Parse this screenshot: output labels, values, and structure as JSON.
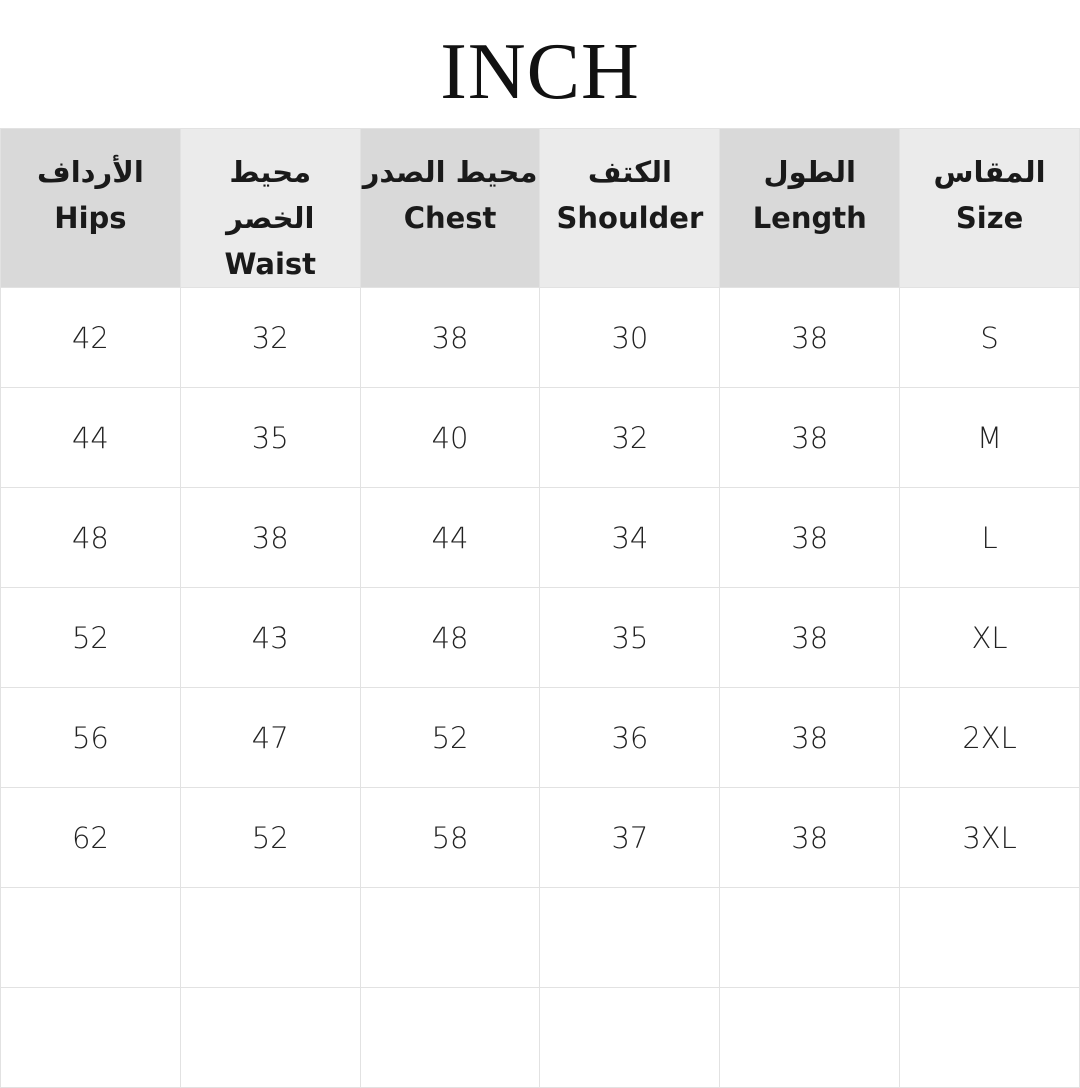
{
  "title": "INCH",
  "columns": [
    {
      "ar": "الأرداف",
      "en": "Hips"
    },
    {
      "ar": "محيط الخصر",
      "en": "Waist"
    },
    {
      "ar": "محيط الصدر",
      "en": "Chest"
    },
    {
      "ar": "الكتف",
      "en": "Shoulder"
    },
    {
      "ar": "الطول",
      "en": "Length"
    },
    {
      "ar": "المقاس",
      "en": "Size"
    }
  ],
  "rows": [
    [
      "42",
      "32",
      "38",
      "30",
      "38",
      "S"
    ],
    [
      "44",
      "35",
      "40",
      "32",
      "38",
      "M"
    ],
    [
      "48",
      "38",
      "44",
      "34",
      "38",
      "L"
    ],
    [
      "52",
      "43",
      "48",
      "35",
      "38",
      "XL"
    ],
    [
      "56",
      "47",
      "52",
      "36",
      "38",
      "2XL"
    ],
    [
      "62",
      "52",
      "58",
      "37",
      "38",
      "3XL"
    ],
    [
      "",
      "",
      "",
      "",
      "",
      ""
    ],
    [
      "",
      "",
      "",
      "",
      "",
      ""
    ]
  ],
  "colors": {
    "header_dark": "#d9d9d9",
    "header_light": "#ebebeb",
    "border": "#e2e2e2"
  }
}
